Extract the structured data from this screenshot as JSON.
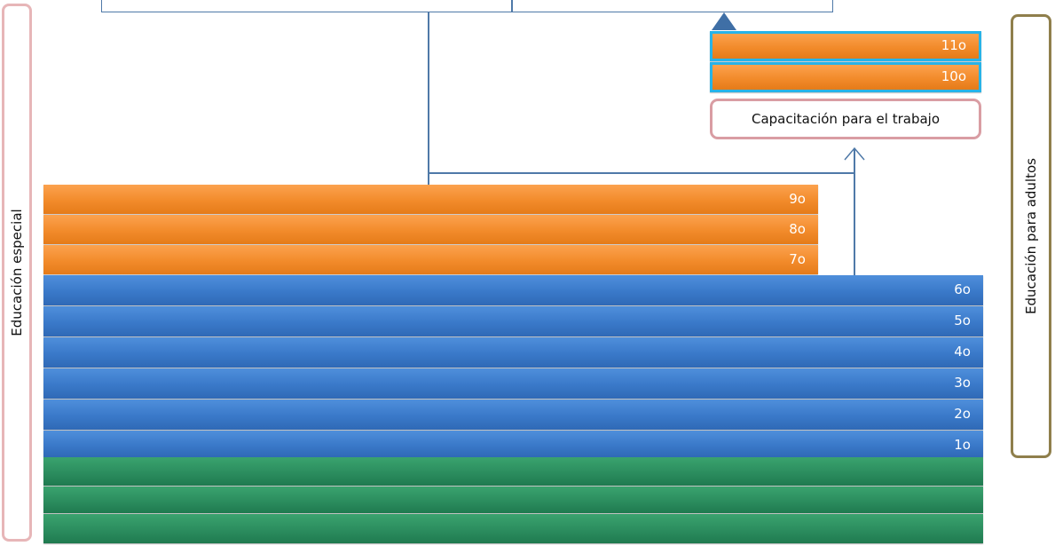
{
  "side_labels": {
    "left": "Educación especial",
    "right": "Educación para adultos"
  },
  "upper_secondary": {
    "grades": [
      "11o",
      "10o"
    ],
    "training_box": "Capacitación para el trabajo"
  },
  "secondary_grades": [
    "9o",
    "8o",
    "7o"
  ],
  "primary_grades": [
    "6o",
    "5o",
    "4o",
    "3o",
    "2o",
    "1o"
  ],
  "preschool_levels": [
    "",
    "",
    ""
  ],
  "colors": {
    "secondary": "#f28b2b",
    "primary": "#3a79c9",
    "preschool": "#2a8b5d",
    "connector": "#4f79a8",
    "special_border": "#e7b6b8",
    "adult_border": "#8f7f4c"
  }
}
